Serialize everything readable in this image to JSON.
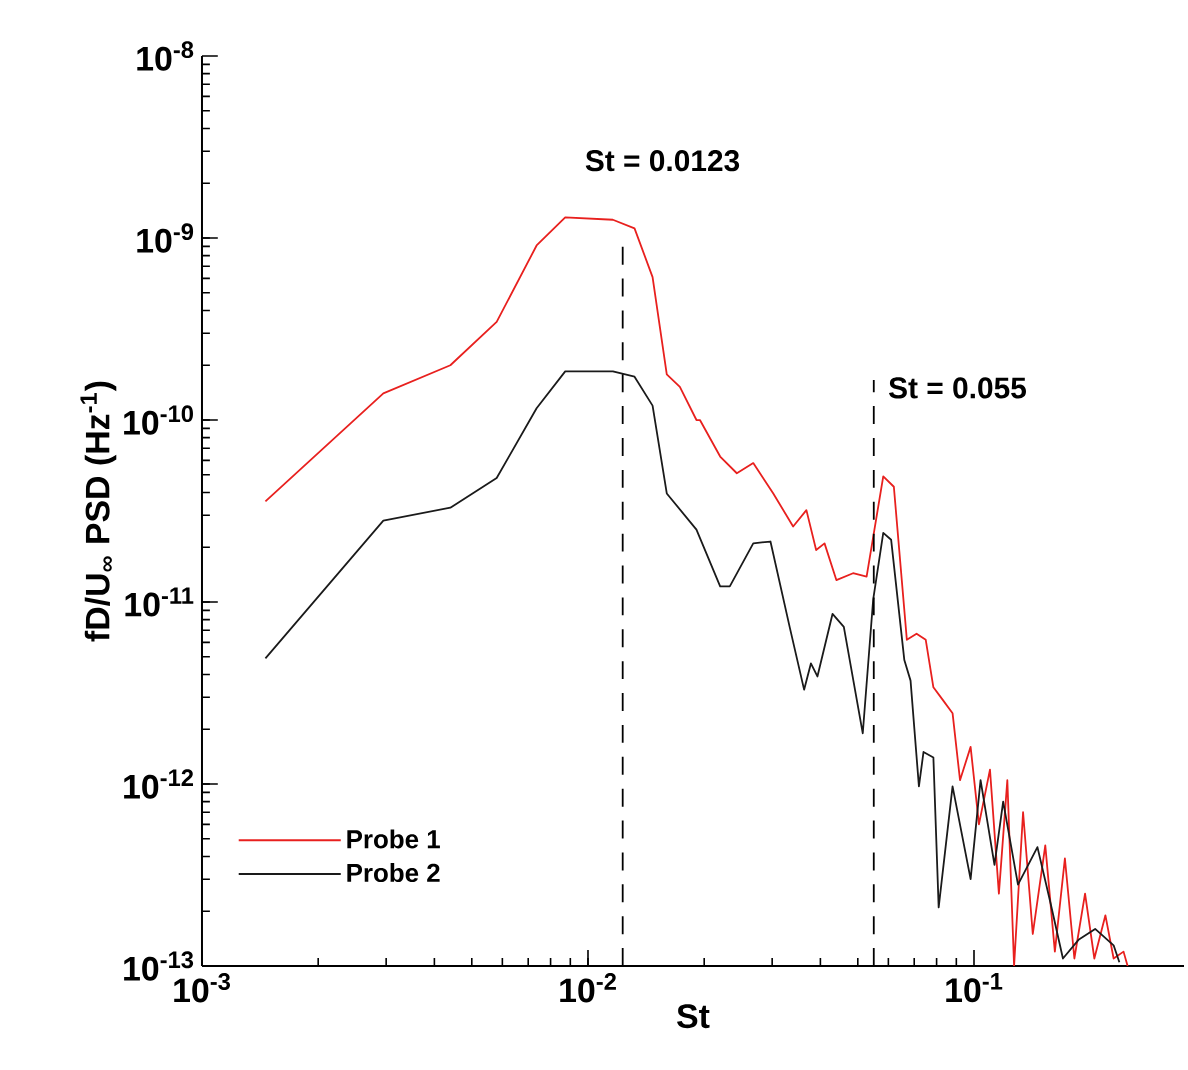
{
  "chart_data": {
    "type": "line",
    "xlabel": "St",
    "ylabel": "fD/U$_{∞}$ PSD (Hz$^{-1}$)",
    "log": "xy",
    "xlim": [
      0.001,
      0.35
    ],
    "ylim": [
      1e-13,
      1e-08
    ],
    "xticks": [
      {
        "value": 0.001,
        "label": "10$^{-3}$"
      },
      {
        "value": 0.01,
        "label": "10$^{-2}$"
      },
      {
        "value": 0.1,
        "label": "10$^{-1}$"
      }
    ],
    "yticks": [
      {
        "value": 1e-13,
        "label": "10$^{-13}$"
      },
      {
        "value": 1e-12,
        "label": "10$^{-12}$"
      },
      {
        "value": 1e-11,
        "label": "10$^{-11}$"
      },
      {
        "value": 1e-10,
        "label": "10$^{-10}$"
      },
      {
        "value": 1e-09,
        "label": "10$^{-9}$"
      },
      {
        "value": 1e-08,
        "label": "10$^{-8}$"
      }
    ],
    "legend": "bottom left",
    "grid": false,
    "line_style": "solid",
    "ref_lines": [
      {
        "axis": "x",
        "value": 0.0123,
        "label": "St = 0.0123",
        "color": "#000000",
        "line_style": "dashed"
      },
      {
        "axis": "x",
        "value": 0.055,
        "label": "St = 0.055",
        "color": "#000000",
        "line_style": "dashed"
      }
    ],
    "series": [
      {
        "name": "Probe 1",
        "color": "#e8201e",
        "x": [
          0.00146,
          0.00295,
          0.0044,
          0.0058,
          0.00736,
          0.00873,
          0.0116,
          0.0132,
          0.0147,
          0.016,
          0.0173,
          0.0191,
          0.0195,
          0.022,
          0.0243,
          0.0268,
          0.0302,
          0.034,
          0.0368,
          0.039,
          0.041,
          0.044,
          0.0486,
          0.0527,
          0.0582,
          0.062,
          0.067,
          0.071,
          0.075,
          0.0785,
          0.083,
          0.088,
          0.092,
          0.098,
          0.103,
          0.11,
          0.116,
          0.122,
          0.127,
          0.134,
          0.142,
          0.153,
          0.162,
          0.172,
          0.182,
          0.194,
          0.205,
          0.219,
          0.23,
          0.244,
          0.25
        ],
        "values": [
          3.57e-11,
          1.4e-10,
          2e-10,
          3.46e-10,
          9.1e-10,
          1.3e-09,
          1.26e-09,
          1.13e-09,
          6.1e-10,
          1.78e-10,
          1.52e-10,
          1e-10,
          1e-10,
          6.3e-11,
          5.1e-11,
          5.8e-11,
          3.95e-11,
          2.6e-11,
          3.2e-11,
          1.93e-11,
          2.1e-11,
          1.32e-11,
          1.44e-11,
          1.38e-11,
          4.9e-11,
          4.3e-11,
          6.2e-12,
          6.7e-12,
          6.2e-12,
          3.4e-12,
          2.9e-12,
          2.45e-12,
          1.05e-12,
          1.6e-12,
          6e-13,
          1.2e-12,
          2.5e-13,
          1.05e-12,
          1e-13,
          7e-13,
          1.5e-13,
          4.6e-13,
          1.2e-13,
          3.9e-13,
          1.1e-13,
          2.5e-13,
          1.1e-13,
          1.9e-13,
          1.1e-13,
          1.2e-13,
          1e-13
        ]
      },
      {
        "name": "Probe 2",
        "color": "#1a1a1a",
        "x": [
          0.00146,
          0.00295,
          0.0044,
          0.0058,
          0.00736,
          0.00873,
          0.0116,
          0.0132,
          0.0147,
          0.016,
          0.0191,
          0.022,
          0.0233,
          0.0268,
          0.0297,
          0.0333,
          0.0363,
          0.0378,
          0.0393,
          0.043,
          0.046,
          0.0515,
          0.0548,
          0.0582,
          0.061,
          0.066,
          0.0685,
          0.072,
          0.074,
          0.0785,
          0.081,
          0.088,
          0.098,
          0.104,
          0.113,
          0.119,
          0.13,
          0.146,
          0.158,
          0.17,
          0.187,
          0.206,
          0.23,
          0.238
        ],
        "values": [
          4.9e-12,
          2.8e-11,
          3.3e-11,
          4.8e-11,
          1.16e-10,
          1.85e-10,
          1.85e-10,
          1.73e-10,
          1.2e-10,
          3.95e-11,
          2.5e-11,
          1.22e-11,
          1.22e-11,
          2.1e-11,
          2.15e-11,
          7.3e-12,
          3.3e-12,
          4.6e-12,
          3.9e-12,
          8.6e-12,
          7.3e-12,
          1.9e-12,
          1.03e-11,
          2.4e-11,
          2.2e-11,
          4.8e-12,
          3.7e-12,
          9.7e-13,
          1.5e-12,
          1.4e-12,
          2.1e-13,
          9.7e-13,
          3e-13,
          1.05e-12,
          3.6e-13,
          8e-13,
          2.8e-13,
          4.5e-13,
          2.2e-13,
          1.1e-13,
          1.4e-13,
          1.6e-13,
          1.3e-13,
          1.05e-13
        ]
      }
    ]
  }
}
